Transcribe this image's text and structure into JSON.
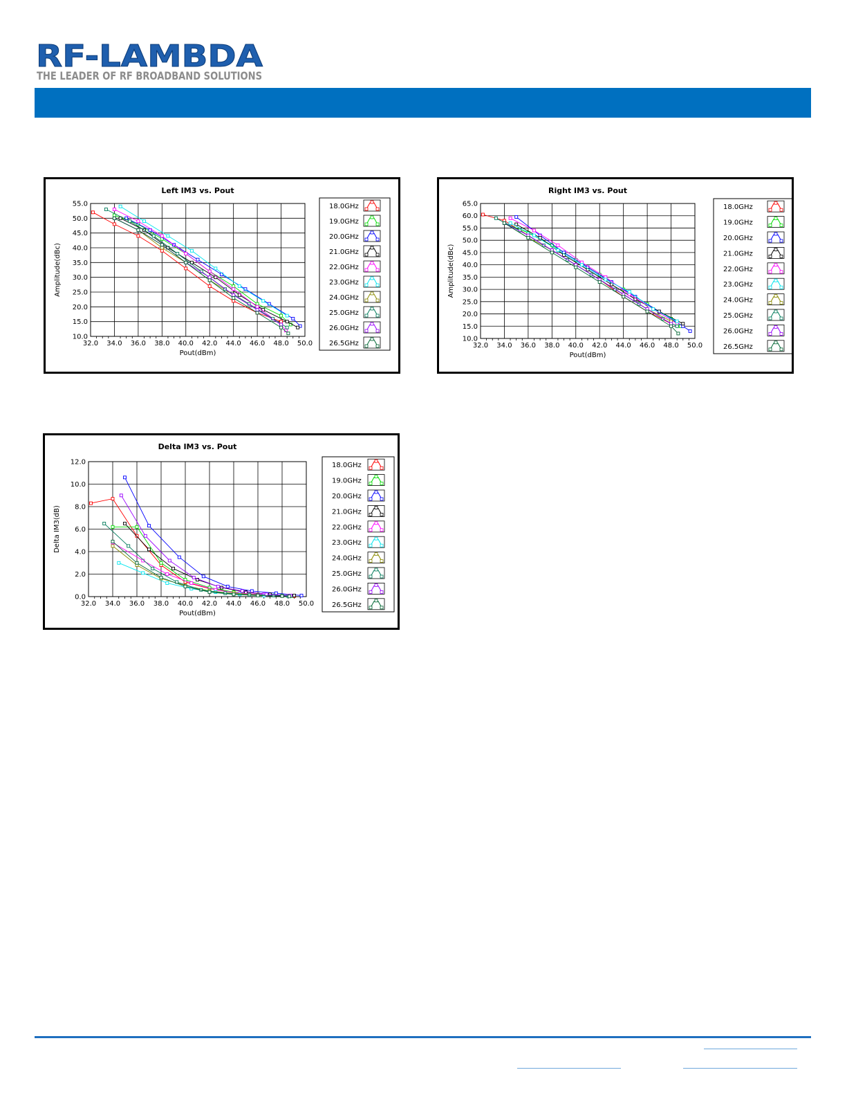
{
  "header": {
    "logo_text": "RF-LAMBDA",
    "logo_tagline": "THE LEADER OF RF BROADBAND SOLUTIONS",
    "band_color": "#0070c0"
  },
  "legend": [
    "18.0GHz",
    "19.0GHz",
    "20.0GHz",
    "21.0GHz",
    "22.0GHz",
    "23.0GHz",
    "24.0GHz",
    "25.0GHz",
    "26.0GHz",
    "26.5GHz"
  ],
  "series_colors": [
    "#ff0000",
    "#00dd00",
    "#0000ff",
    "#000000",
    "#ff00ff",
    "#00e5ee",
    "#8b8b00",
    "#007a5a",
    "#9900ff",
    "#006633"
  ],
  "chart_data": [
    {
      "type": "line",
      "title": "Left IM3 vs. Pout",
      "xlabel": "Pout(dBm)",
      "ylabel": "Amplitude(dBc)",
      "xlim": [
        32.0,
        50.0
      ],
      "ylim": [
        10.0,
        55.0
      ],
      "xticks": [
        "32.0",
        "34.0",
        "36.0",
        "38.0",
        "40.0",
        "42.0",
        "44.0",
        "46.0",
        "48.0",
        "50.0"
      ],
      "yticks": [
        "10.0",
        "15.0",
        "20.0",
        "25.0",
        "30.0",
        "35.0",
        "40.0",
        "45.0",
        "50.0",
        "55.0"
      ],
      "grid": true,
      "legend_position": "right",
      "series": [
        {
          "name": "18.0GHz",
          "x": [
            32.2,
            34.0,
            36.0,
            38.0,
            40.0,
            42.0,
            44.0,
            46.0,
            48.0
          ],
          "y": [
            52,
            48,
            44,
            39,
            33,
            27,
            22,
            18,
            15
          ]
        },
        {
          "name": "19.0GHz",
          "x": [
            34.0,
            36.0,
            38.0,
            40.0,
            42.0,
            44.0,
            46.0,
            48.0,
            48.8
          ],
          "y": [
            51,
            48,
            43,
            38,
            32,
            27,
            21,
            17,
            14
          ]
        },
        {
          "name": "20.0GHz",
          "x": [
            35.0,
            37.0,
            39.0,
            41.0,
            43.0,
            45.0,
            47.0,
            49.0,
            49.6
          ],
          "y": [
            50,
            46,
            41,
            36,
            31,
            26,
            21,
            16,
            13.5
          ]
        },
        {
          "name": "21.0GHz",
          "x": [
            34.5,
            36.5,
            38.5,
            40.5,
            42.5,
            44.5,
            46.5,
            48.5,
            49.4
          ],
          "y": [
            50,
            46,
            40,
            35,
            30,
            24,
            19,
            15,
            13
          ]
        },
        {
          "name": "22.0GHz",
          "x": [
            34.0,
            36.0,
            38.0,
            40.0,
            42.0,
            44.0,
            46.0,
            48.0,
            48.4
          ],
          "y": [
            53,
            49,
            44,
            38,
            32,
            26,
            20,
            14,
            12
          ]
        },
        {
          "name": "23.0GHz",
          "x": [
            34.5,
            36.5,
            38.5,
            40.5,
            42.5,
            44.5,
            46.5,
            48.5
          ],
          "y": [
            54,
            49,
            44,
            39,
            33,
            27,
            22,
            17
          ]
        },
        {
          "name": "24.0GHz",
          "x": [
            34.0,
            36.0,
            38.0,
            40.0,
            42.0,
            44.0,
            46.0,
            48.0
          ],
          "y": [
            50,
            46,
            40,
            35,
            29,
            24,
            19,
            14
          ]
        },
        {
          "name": "25.0GHz",
          "x": [
            33.3,
            35.3,
            37.3,
            39.3,
            41.3,
            43.3,
            45.3,
            47.3,
            48.5
          ],
          "y": [
            53,
            49,
            44,
            38,
            32,
            26,
            21,
            16,
            13
          ]
        },
        {
          "name": "26.0GHz",
          "x": [
            34.0,
            36.0,
            38.0,
            40.0,
            42.0,
            44.0,
            46.0,
            48.0
          ],
          "y": [
            50,
            46,
            41,
            35,
            30,
            24,
            19,
            14
          ]
        },
        {
          "name": "26.5GHz",
          "x": [
            34.0,
            36.0,
            38.0,
            40.0,
            42.0,
            44.0,
            46.0,
            48.0,
            48.6
          ],
          "y": [
            50,
            46,
            41,
            35,
            29,
            23,
            18,
            13,
            11
          ]
        }
      ]
    },
    {
      "type": "line",
      "title": "Right IM3 vs. Pout",
      "xlabel": "Pout(dBm)",
      "ylabel": "Amplitude(dBc)",
      "xlim": [
        32.0,
        50.0
      ],
      "ylim": [
        10.0,
        65.0
      ],
      "xticks": [
        "32.0",
        "34.0",
        "36.0",
        "38.0",
        "40.0",
        "42.0",
        "44.0",
        "46.0",
        "48.0",
        "50.0"
      ],
      "yticks": [
        "10.0",
        "15.0",
        "20.0",
        "25.0",
        "30.0",
        "35.0",
        "40.0",
        "45.0",
        "50.0",
        "55.0",
        "60.0",
        "65.0"
      ],
      "grid": true,
      "legend_position": "right",
      "series": [
        {
          "name": "18.0GHz",
          "x": [
            32.2,
            34.0,
            36.0,
            38.0,
            40.0,
            42.0,
            44.0,
            46.0,
            48.0
          ],
          "y": [
            60.5,
            58,
            52,
            46,
            40,
            34,
            27,
            21,
            16
          ]
        },
        {
          "name": "19.0GHz",
          "x": [
            34.0,
            36.0,
            38.0,
            40.0,
            42.0,
            44.0,
            46.0,
            48.0,
            48.8
          ],
          "y": [
            57,
            53,
            48,
            42,
            36,
            30,
            24,
            18,
            15
          ]
        },
        {
          "name": "20.0GHz",
          "x": [
            35.0,
            37.0,
            39.0,
            41.0,
            43.0,
            45.0,
            47.0,
            49.0,
            49.6
          ],
          "y": [
            59.5,
            52,
            45,
            39,
            33,
            27,
            21,
            15,
            13
          ]
        },
        {
          "name": "21.0GHz",
          "x": [
            35.0,
            37.0,
            39.0,
            41.0,
            43.0,
            45.0,
            47.0,
            49.0
          ],
          "y": [
            56.5,
            51,
            44,
            38,
            32,
            26,
            21,
            16
          ]
        },
        {
          "name": "22.0GHz",
          "x": [
            34.5,
            36.5,
            38.5,
            40.5,
            42.5,
            44.5,
            46.5,
            48.5
          ],
          "y": [
            59,
            54,
            48,
            41,
            35,
            28,
            22,
            16
          ]
        },
        {
          "name": "23.0GHz",
          "x": [
            34.5,
            36.5,
            38.5,
            40.5,
            42.5,
            44.5,
            46.5,
            48.5
          ],
          "y": [
            57,
            52,
            46,
            40,
            34,
            29,
            22,
            17
          ]
        },
        {
          "name": "24.0GHz",
          "x": [
            34.0,
            36.0,
            38.0,
            40.0,
            42.0,
            44.0,
            46.0,
            48.0
          ],
          "y": [
            57,
            51,
            46,
            40,
            34,
            28,
            22,
            17
          ]
        },
        {
          "name": "25.0GHz",
          "x": [
            33.3,
            35.3,
            37.3,
            39.3,
            41.3,
            43.3,
            45.3,
            47.3,
            48.5
          ],
          "y": [
            59,
            54,
            48,
            42,
            36,
            30,
            24,
            18,
            15
          ]
        },
        {
          "name": "26.0GHz",
          "x": [
            34.0,
            36.0,
            38.0,
            40.0,
            42.0,
            44.0,
            46.0,
            48.0
          ],
          "y": [
            57,
            52,
            46,
            40,
            34,
            28,
            22,
            16
          ]
        },
        {
          "name": "26.5GHz",
          "x": [
            34.0,
            36.0,
            38.0,
            40.0,
            42.0,
            44.0,
            46.0,
            48.0,
            48.6
          ],
          "y": [
            57,
            51,
            45,
            39,
            33,
            27,
            21,
            15,
            12
          ]
        }
      ]
    },
    {
      "type": "line",
      "title": "Delta IM3 vs. Pout",
      "xlabel": "Pout(dBm)",
      "ylabel": "Delta IM3(dB)",
      "xlim": [
        32.0,
        50.0
      ],
      "ylim": [
        0.0,
        12.0
      ],
      "xticks": [
        "32.0",
        "34.0",
        "36.0",
        "38.0",
        "40.0",
        "42.0",
        "44.0",
        "46.0",
        "48.0",
        "50.0"
      ],
      "yticks": [
        "0.0",
        "2.0",
        "4.0",
        "6.0",
        "8.0",
        "10.0",
        "12.0"
      ],
      "grid": true,
      "legend_position": "right",
      "series": [
        {
          "name": "18.0GHz",
          "x": [
            32.2,
            34.0,
            36.0,
            38.0,
            40.0,
            42.0,
            44.0,
            46.0,
            48.0,
            49.0
          ],
          "y": [
            8.3,
            8.7,
            5.4,
            2.8,
            1.3,
            0.7,
            0.4,
            0.2,
            0.1,
            0.05
          ]
        },
        {
          "name": "19.0GHz",
          "x": [
            34.0,
            36.0,
            38.0,
            40.0,
            42.0,
            44.0,
            46.0,
            48.0,
            48.8
          ],
          "y": [
            6.2,
            6.2,
            3.0,
            1.5,
            0.8,
            0.4,
            0.2,
            0.1,
            0.05
          ]
        },
        {
          "name": "20.0GHz",
          "x": [
            35.0,
            37.0,
            39.5,
            41.5,
            43.5,
            45.5,
            47.5,
            49.6
          ],
          "y": [
            10.6,
            6.3,
            3.5,
            1.8,
            0.9,
            0.5,
            0.3,
            0.1
          ]
        },
        {
          "name": "21.0GHz",
          "x": [
            35.0,
            37.0,
            39.0,
            41.0,
            43.0,
            45.0,
            47.0,
            49.0
          ],
          "y": [
            6.5,
            4.2,
            2.5,
            1.5,
            0.8,
            0.4,
            0.2,
            0.1
          ]
        },
        {
          "name": "22.0GHz",
          "x": [
            34.0,
            36.5,
            38.5,
            40.5,
            42.5,
            44.5,
            46.5,
            48.5
          ],
          "y": [
            4.8,
            3.2,
            2.0,
            1.2,
            0.6,
            0.3,
            0.2,
            0.1
          ]
        },
        {
          "name": "23.0GHz",
          "x": [
            34.5,
            36.5,
            38.5,
            40.5,
            42.5,
            44.5,
            46.5,
            48.5
          ],
          "y": [
            3.0,
            2.1,
            1.2,
            0.7,
            0.4,
            0.2,
            0.1,
            0.05
          ]
        },
        {
          "name": "24.0GHz",
          "x": [
            34.0,
            36.0,
            38.0,
            40.0,
            42.0,
            44.0,
            46.0,
            48.0
          ],
          "y": [
            4.5,
            2.8,
            1.6,
            1.0,
            0.5,
            0.3,
            0.15,
            0.05
          ]
        },
        {
          "name": "25.0GHz",
          "x": [
            33.3,
            35.3,
            37.3,
            39.3,
            41.3,
            43.3,
            45.3,
            47.3,
            48.5
          ],
          "y": [
            6.5,
            4.5,
            2.5,
            1.3,
            0.6,
            0.3,
            0.15,
            0.1,
            0.05
          ]
        },
        {
          "name": "26.0GHz",
          "x": [
            34.7,
            36.7,
            38.7,
            40.7,
            42.7,
            44.7,
            46.7,
            48.7
          ],
          "y": [
            9.0,
            5.4,
            3.2,
            1.7,
            0.9,
            0.5,
            0.2,
            0.1
          ]
        },
        {
          "name": "26.5GHz",
          "x": [
            34.0,
            36.0,
            38.0,
            40.0,
            42.0,
            44.0,
            46.0,
            48.0,
            48.6
          ],
          "y": [
            4.9,
            3.0,
            1.7,
            0.9,
            0.4,
            0.2,
            0.1,
            0.05,
            0.02
          ]
        }
      ]
    }
  ]
}
